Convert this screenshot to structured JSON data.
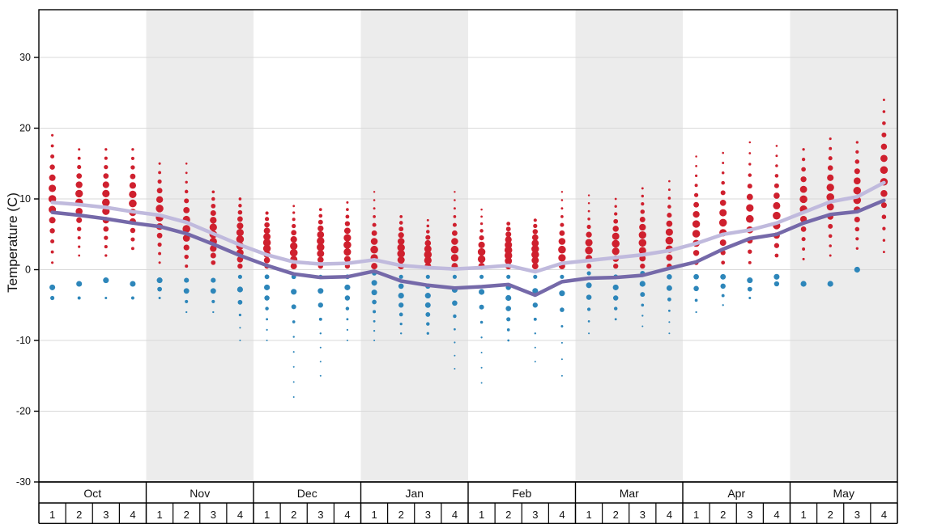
{
  "chart_data": {
    "type": "scatter",
    "title": "",
    "ylabel": "Temperature (C)",
    "ylim": [
      -30,
      36.5
    ],
    "yticks": [
      30,
      20,
      10,
      0,
      -10,
      -20,
      -30
    ],
    "grid": true,
    "months": [
      "Oct",
      "Nov",
      "Dec",
      "Jan",
      "Feb",
      "Mar",
      "Apr",
      "May"
    ],
    "weeks_per_month": [
      "1",
      "2",
      "3",
      "4"
    ],
    "shaded_months": [
      "Nov",
      "Jan",
      "Mar",
      "May"
    ],
    "colors": {
      "red_dot": "#cf202e",
      "blue_dot": "#2d86ba",
      "avg_max_line": "#c0badd",
      "avg_min_line": "#7569a9",
      "band": "#ececec",
      "grid": "#d9d9d9",
      "axis": "#000000"
    },
    "series": [
      {
        "name": "average-max-line",
        "color": "#c0badd",
        "values": [
          9.5,
          9.2,
          8.8,
          8.2,
          7.7,
          6.7,
          5.1,
          3.5,
          2.1,
          1.1,
          0.8,
          0.9,
          1.4,
          0.6,
          0.3,
          0.1,
          0.3,
          0.6,
          -0.3,
          0.9,
          1.3,
          1.7,
          2.1,
          2.7,
          3.7,
          5.0,
          5.6,
          6.6,
          8.1,
          9.6,
          10.3,
          12.3
        ]
      },
      {
        "name": "average-min-line",
        "color": "#7569a9",
        "values": [
          8.1,
          7.7,
          7.2,
          6.6,
          6.1,
          5.1,
          3.6,
          2.0,
          0.6,
          -0.6,
          -1.1,
          -1.0,
          -0.2,
          -1.6,
          -2.2,
          -2.6,
          -2.4,
          -2.1,
          -3.6,
          -1.7,
          -1.2,
          -1.1,
          -0.8,
          0.2,
          1.1,
          2.9,
          4.4,
          5.0,
          6.6,
          7.8,
          8.2,
          9.8
        ]
      }
    ],
    "scatter": {
      "red": {
        "label": "max-temperature-dots",
        "color": "#cf202e",
        "weeks_format": [
          "min",
          "max",
          "dense_min",
          "dense_max",
          "count"
        ],
        "weeks": [
          [
            1,
            19,
            7,
            13,
            13
          ],
          [
            2,
            17,
            8,
            12,
            13
          ],
          [
            2,
            17,
            7,
            12,
            13
          ],
          [
            3,
            17,
            7,
            12,
            12
          ],
          [
            1,
            15,
            6,
            10,
            12
          ],
          [
            0.5,
            15,
            4,
            8,
            12
          ],
          [
            1,
            11,
            3,
            7,
            11
          ],
          [
            0.5,
            10,
            2,
            6,
            11
          ],
          [
            0.5,
            8,
            2,
            5,
            10
          ],
          [
            0.5,
            9,
            1,
            4,
            10
          ],
          [
            0.5,
            8.5,
            2,
            5,
            10
          ],
          [
            0.5,
            9.5,
            2,
            5,
            10
          ],
          [
            0.5,
            11,
            1,
            4,
            10
          ],
          [
            0.5,
            7.5,
            1,
            4,
            9
          ],
          [
            0.5,
            7,
            1,
            3,
            9
          ],
          [
            0.5,
            11,
            1,
            4,
            10
          ],
          [
            0.5,
            8.5,
            1,
            3,
            9
          ],
          [
            0.5,
            6.5,
            1,
            4,
            9
          ],
          [
            0.5,
            7,
            1,
            4,
            9
          ],
          [
            0.5,
            11,
            1,
            4,
            10
          ],
          [
            0.5,
            10.5,
            2,
            4,
            10
          ],
          [
            0.5,
            10,
            2,
            5,
            10
          ],
          [
            0.5,
            11.5,
            2,
            6,
            11
          ],
          [
            0.5,
            12.5,
            2,
            6,
            11
          ],
          [
            1,
            16,
            3,
            8,
            12
          ],
          [
            1,
            16.5,
            4,
            9,
            12
          ],
          [
            1,
            18,
            5,
            10,
            12
          ],
          [
            2,
            17.5,
            5,
            10,
            12
          ],
          [
            1.5,
            17,
            7,
            12,
            12
          ],
          [
            2,
            18.5,
            8,
            13,
            13
          ],
          [
            3,
            18,
            8,
            13,
            12
          ],
          [
            2.5,
            24,
            10,
            17,
            14
          ]
        ]
      },
      "blue": {
        "label": "min-temperature-dots",
        "color": "#2d86ba",
        "weeks_format": [
          "min",
          "max",
          "dense_min",
          "dense_max",
          "count"
        ],
        "weeks": [
          [
            -4,
            -2.5,
            -3,
            -2.5,
            2
          ],
          [
            -4,
            -2,
            -2.5,
            -2,
            2
          ],
          [
            -4,
            -1.5,
            -2,
            -1.5,
            2
          ],
          [
            -4,
            -2,
            -2.5,
            -2,
            2
          ],
          [
            -4,
            -1.5,
            -2,
            -1.5,
            3
          ],
          [
            -6,
            -1.5,
            -3,
            -2,
            4
          ],
          [
            -6,
            -1.5,
            -3,
            -2,
            4
          ],
          [
            -10,
            -1,
            -4,
            -2,
            6
          ],
          [
            -10,
            -1,
            -4,
            -1.5,
            7
          ],
          [
            -18,
            -1,
            -5,
            -1.5,
            9
          ],
          [
            -15,
            -1,
            -5,
            -2,
            8
          ],
          [
            -10,
            -1,
            -4,
            -1.5,
            7
          ],
          [
            -10,
            -0.5,
            -4,
            -1,
            8
          ],
          [
            -9,
            -1,
            -5,
            -2,
            7
          ],
          [
            -9,
            -1,
            -6,
            -2,
            7
          ],
          [
            -14,
            -1,
            -5,
            -2,
            8
          ],
          [
            -16,
            -1,
            -5,
            -2,
            8
          ],
          [
            -10,
            -1,
            -6,
            -2,
            7
          ],
          [
            -13,
            -1,
            -5,
            -2,
            7
          ],
          [
            -15,
            -1,
            -5,
            -2,
            7
          ],
          [
            -9,
            -0.5,
            -4,
            -1.5,
            6
          ],
          [
            -7,
            -1,
            -4,
            -1.5,
            5
          ],
          [
            -8,
            -0.5,
            -3,
            -1,
            6
          ],
          [
            -9,
            -1,
            -3,
            -1,
            6
          ],
          [
            -6,
            -1,
            -2.5,
            -1,
            4
          ],
          [
            -5,
            -1,
            -2,
            -1,
            4
          ],
          [
            -4,
            -1.5,
            -2,
            -1.5,
            3
          ],
          [
            -2,
            -1,
            -1.5,
            -1,
            2
          ],
          [
            -2,
            -2,
            -2,
            -2,
            1
          ],
          [
            -2,
            -2,
            -2,
            -2,
            1
          ],
          [
            0,
            0,
            0,
            0,
            1
          ],
          [
            0,
            0,
            0,
            0,
            0
          ]
        ]
      }
    }
  }
}
